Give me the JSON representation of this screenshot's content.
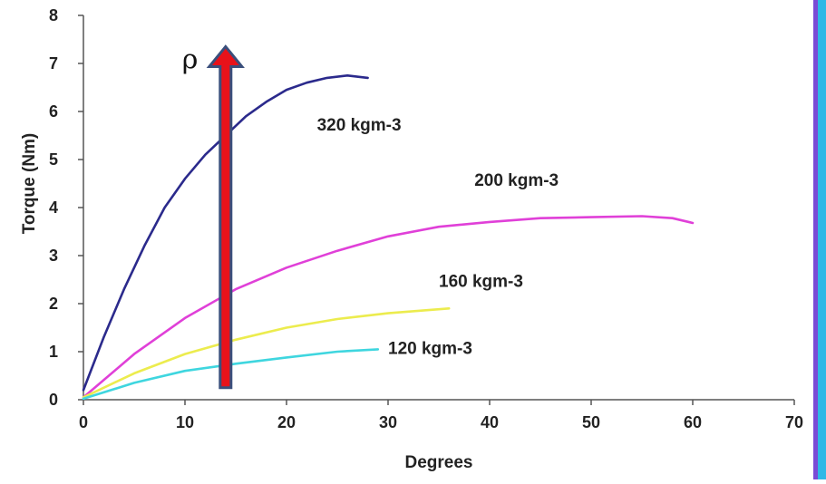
{
  "chart_data": {
    "type": "line",
    "title": "",
    "xlabel": "Degrees",
    "ylabel": "Torque (Nm)",
    "xlim": [
      0,
      70
    ],
    "ylim": [
      0,
      8
    ],
    "x_ticks": [
      0,
      10,
      20,
      30,
      40,
      50,
      60,
      70
    ],
    "y_ticks": [
      0,
      1,
      2,
      3,
      4,
      5,
      6,
      7,
      8
    ],
    "grid": false,
    "legend": "none",
    "series": [
      {
        "name": "320 kgm-3",
        "color": "#2b2a8c",
        "x": [
          0,
          2,
          4,
          6,
          8,
          10,
          12,
          14,
          16,
          18,
          20,
          22,
          24,
          26,
          28
        ],
        "y": [
          0.2,
          1.3,
          2.3,
          3.2,
          4.0,
          4.6,
          5.1,
          5.5,
          5.9,
          6.2,
          6.45,
          6.6,
          6.7,
          6.75,
          6.7
        ]
      },
      {
        "name": "200 kgm-3",
        "color": "#e040d8",
        "x": [
          0,
          5,
          10,
          15,
          20,
          25,
          30,
          35,
          40,
          45,
          50,
          55,
          58,
          60
        ],
        "y": [
          0.05,
          0.95,
          1.7,
          2.3,
          2.75,
          3.1,
          3.4,
          3.6,
          3.7,
          3.78,
          3.8,
          3.82,
          3.78,
          3.68
        ]
      },
      {
        "name": "160 kgm-3",
        "color": "#ecec4e",
        "x": [
          0,
          5,
          10,
          15,
          20,
          25,
          30,
          36
        ],
        "y": [
          0.05,
          0.55,
          0.95,
          1.25,
          1.5,
          1.68,
          1.8,
          1.9
        ]
      },
      {
        "name": "120 kgm-3",
        "color": "#3fd6df",
        "x": [
          0,
          5,
          10,
          15,
          20,
          25,
          29
        ],
        "y": [
          0.02,
          0.35,
          0.6,
          0.75,
          0.88,
          1.0,
          1.05
        ]
      }
    ],
    "annotations": [
      {
        "text": "320 kgm-3",
        "series": 0
      },
      {
        "text": "200 kgm-3",
        "series": 1
      },
      {
        "text": "160 kgm-3",
        "series": 2
      },
      {
        "text": "120 kgm-3",
        "series": 3
      },
      {
        "text": "ρ",
        "kind": "arrow-label"
      }
    ],
    "arrow": {
      "x": 14,
      "y_from": 0.25,
      "y_to": 7.35,
      "fill": "#e8121a",
      "outline": "#3a4f7c"
    }
  },
  "colors": {
    "frame_border": "#7a4bd6",
    "frame_accent": "#2fb8e6"
  }
}
